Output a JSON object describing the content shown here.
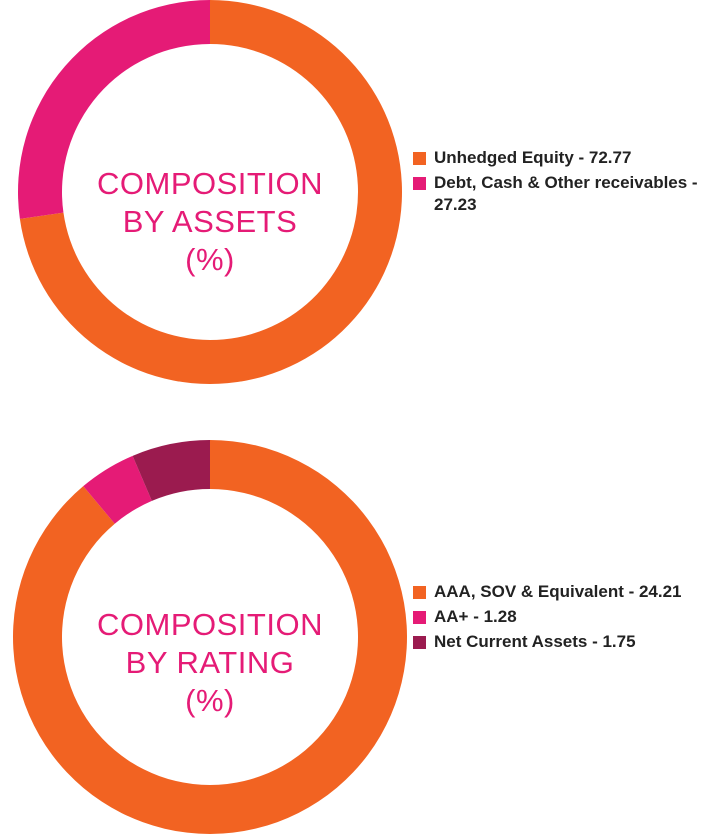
{
  "chart_data": [
    {
      "type": "pie",
      "title_lines": [
        "COMPOSITION",
        "BY ASSETS",
        "(%)"
      ],
      "slices": [
        {
          "label": "Unhedged Equity",
          "value": 72.77,
          "color": "#f26322"
        },
        {
          "label": "Debt, Cash & Other receivables",
          "value": 27.23,
          "color": "#e51b76"
        }
      ],
      "legend": [
        {
          "text": "Unhedged Equity - 72.77",
          "color": "#f26322"
        },
        {
          "text": "Debt, Cash & Other receivables - 27.23",
          "color": "#e51b76"
        }
      ],
      "legend_placement": "right"
    },
    {
      "type": "pie",
      "title_lines": [
        "COMPOSITION",
        "BY RATING",
        "(%)"
      ],
      "slices": [
        {
          "label": "AAA, SOV & Equivalent",
          "value": 24.21,
          "color": "#f26322"
        },
        {
          "label": "AA+",
          "value": 1.28,
          "color": "#e51b76"
        },
        {
          "label": "Net Current Assets",
          "value": 1.75,
          "color": "#9b1b4f"
        }
      ],
      "legend": [
        {
          "text": "AAA, SOV & Equivalent - 24.21",
          "color": "#f26322"
        },
        {
          "text": "AA+ - 1.28",
          "color": "#e51b76"
        },
        {
          "text": "Net Current Assets - 1.75",
          "color": "#9b1b4f"
        }
      ],
      "legend_placement": "right"
    }
  ]
}
